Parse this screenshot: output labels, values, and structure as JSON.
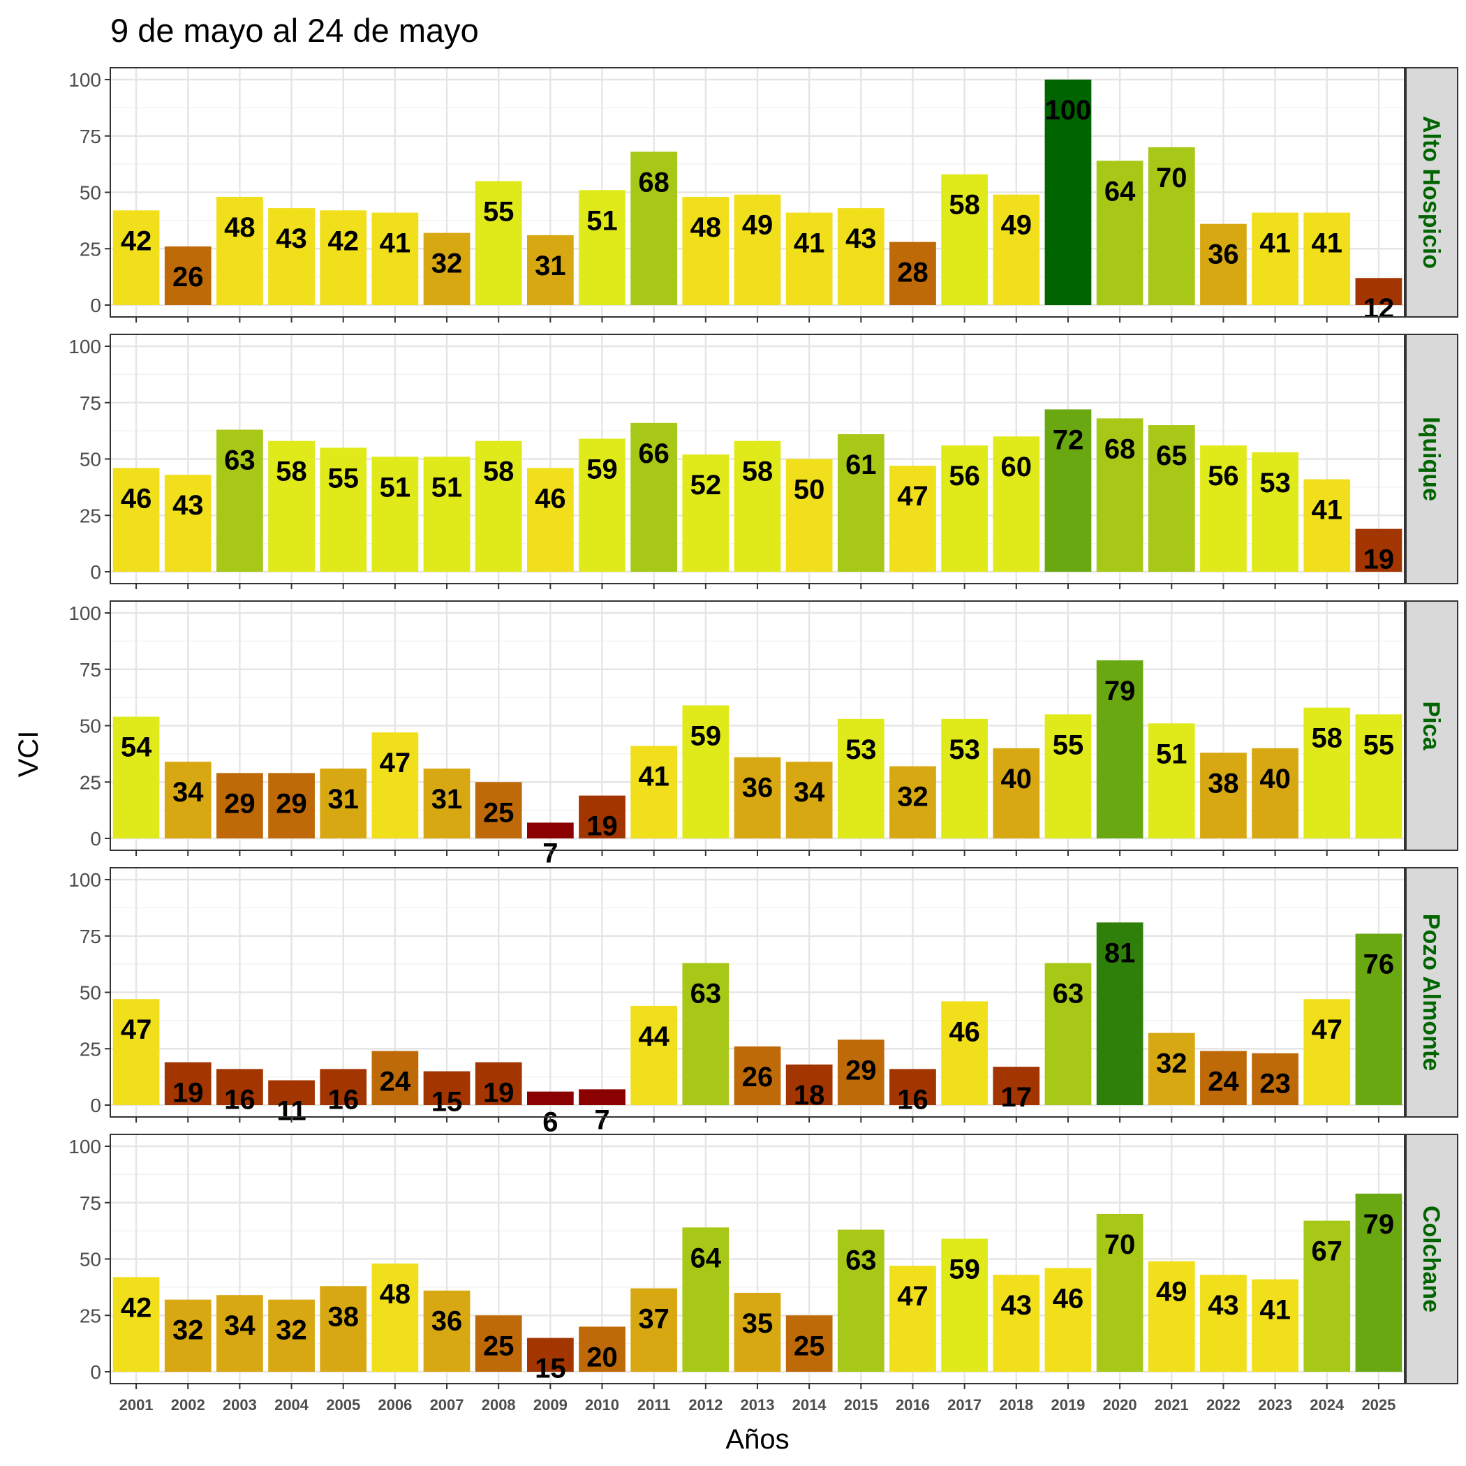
{
  "chart_data": {
    "type": "bar",
    "title": "9 de mayo al 24 de mayo",
    "xlabel": "Años",
    "ylabel": "VCI",
    "ylim": [
      0,
      100
    ],
    "yticks": [
      0,
      25,
      50,
      75,
      100
    ],
    "grid": true,
    "categories": [
      "2001",
      "2002",
      "2003",
      "2004",
      "2005",
      "2006",
      "2007",
      "2008",
      "2009",
      "2010",
      "2011",
      "2012",
      "2013",
      "2014",
      "2015",
      "2016",
      "2017",
      "2018",
      "2019",
      "2020",
      "2021",
      "2022",
      "2023",
      "2024",
      "2025"
    ],
    "color_scale": [
      {
        "max": 9,
        "color": "#8b0000"
      },
      {
        "max": 19,
        "color": "#a33500"
      },
      {
        "max": 29,
        "color": "#bf6a08"
      },
      {
        "max": 40,
        "color": "#d8a812"
      },
      {
        "max": 50,
        "color": "#f0df1a"
      },
      {
        "max": 60,
        "color": "#e0ea1a"
      },
      {
        "max": 70,
        "color": "#a8c818"
      },
      {
        "max": 79,
        "color": "#6aa812"
      },
      {
        "max": 89,
        "color": "#2f800a"
      },
      {
        "max": 100,
        "color": "#006400"
      }
    ],
    "series": [
      {
        "name": "Alto Hospicio",
        "values": [
          42,
          26,
          48,
          43,
          42,
          41,
          32,
          55,
          31,
          51,
          68,
          48,
          49,
          41,
          43,
          28,
          58,
          49,
          100,
          64,
          70,
          36,
          41,
          41,
          12
        ]
      },
      {
        "name": "Iquique",
        "values": [
          46,
          43,
          63,
          58,
          55,
          51,
          51,
          58,
          46,
          59,
          66,
          52,
          58,
          50,
          61,
          47,
          56,
          60,
          72,
          68,
          65,
          56,
          53,
          41,
          19
        ]
      },
      {
        "name": "Pica",
        "values": [
          54,
          34,
          29,
          29,
          31,
          47,
          31,
          25,
          7,
          19,
          41,
          59,
          36,
          34,
          53,
          32,
          53,
          40,
          55,
          79,
          51,
          38,
          40,
          58,
          55
        ]
      },
      {
        "name": "Pozo Almonte",
        "values": [
          47,
          19,
          16,
          11,
          16,
          24,
          15,
          19,
          6,
          7,
          44,
          63,
          26,
          18,
          29,
          16,
          46,
          17,
          63,
          81,
          32,
          24,
          23,
          47,
          76
        ]
      },
      {
        "name": "Colchane",
        "values": [
          42,
          32,
          34,
          32,
          38,
          48,
          36,
          25,
          15,
          20,
          37,
          64,
          35,
          25,
          63,
          47,
          59,
          43,
          46,
          70,
          49,
          43,
          41,
          67,
          79
        ]
      }
    ]
  }
}
